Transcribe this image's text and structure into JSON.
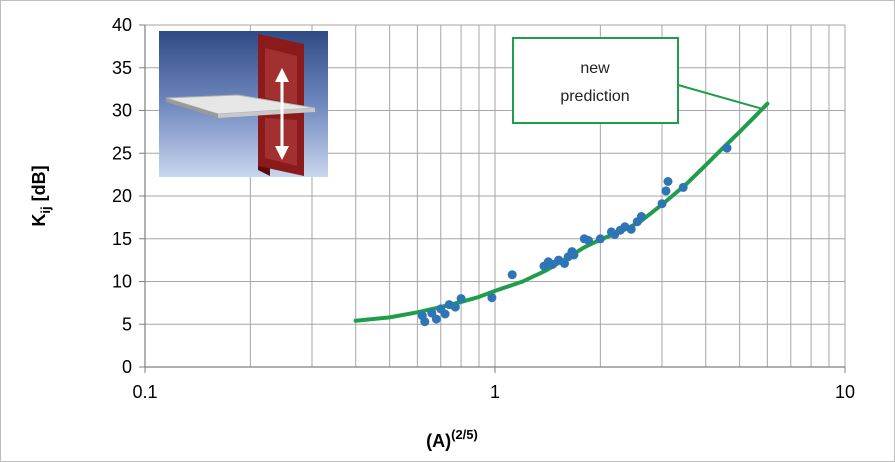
{
  "chart_data": {
    "type": "scatter",
    "xscale": "log",
    "xlim": [
      0.1,
      10
    ],
    "ylim": [
      0,
      40
    ],
    "x_ticks": [
      {
        "value": 0.1,
        "label": "0.1"
      },
      {
        "value": 1,
        "label": "1"
      },
      {
        "value": 10,
        "label": "10"
      }
    ],
    "y_ticks": [
      {
        "value": 0,
        "label": "0"
      },
      {
        "value": 5,
        "label": "5"
      },
      {
        "value": 10,
        "label": "10"
      },
      {
        "value": 15,
        "label": "15"
      },
      {
        "value": 20,
        "label": "20"
      },
      {
        "value": 25,
        "label": "25"
      },
      {
        "value": 30,
        "label": "30"
      },
      {
        "value": 35,
        "label": "35"
      },
      {
        "value": 40,
        "label": "40"
      }
    ],
    "xlabel": {
      "base": "(A)",
      "sup": "(2/5)"
    },
    "ylabel": {
      "base": "K",
      "sub": "ij",
      "rest": " [dB]"
    },
    "grid": true,
    "series": [
      {
        "kind": "points",
        "color": "#2e75b6",
        "x": [
          0.62,
          0.63,
          0.66,
          0.68,
          0.7,
          0.72,
          0.74,
          0.77,
          0.8,
          0.98,
          1.12,
          1.38,
          1.42,
          1.46,
          1.52,
          1.58,
          1.62,
          1.66,
          1.68,
          1.8,
          1.85,
          2.0,
          2.15,
          2.2,
          2.28,
          2.35,
          2.45,
          2.55,
          2.62,
          3.0,
          3.08,
          3.12,
          3.45,
          4.6
        ],
        "y": [
          6.0,
          5.3,
          6.3,
          5.6,
          6.8,
          6.2,
          7.3,
          7.0,
          8.0,
          8.1,
          10.8,
          11.8,
          12.3,
          12.0,
          12.5,
          12.1,
          12.9,
          13.5,
          13.1,
          15.0,
          14.8,
          15.0,
          15.8,
          15.5,
          16.0,
          16.4,
          16.1,
          17.0,
          17.6,
          19.1,
          20.6,
          21.7,
          21.0,
          25.6
        ]
      },
      {
        "kind": "line",
        "name": "new prediction",
        "color": "#1e9e4a",
        "x": [
          0.4,
          0.5,
          0.6,
          0.7,
          0.8,
          0.9,
          1.0,
          1.2,
          1.4,
          1.6,
          1.8,
          2.0,
          2.3,
          2.6,
          3.0,
          3.5,
          4.0,
          4.5,
          5.0,
          5.5,
          6.0
        ],
        "y": [
          5.4,
          5.8,
          6.4,
          7.0,
          7.6,
          8.2,
          8.9,
          10.0,
          11.3,
          12.7,
          14.0,
          14.9,
          15.9,
          17.0,
          19.0,
          21.3,
          23.6,
          25.7,
          27.5,
          29.2,
          30.8
        ]
      }
    ],
    "annotations": [
      {
        "text_lines": [
          "new",
          "prediction"
        ],
        "target": {
          "x": 5.8,
          "y": 30.2
        }
      }
    ],
    "inset": {
      "depicts": "plate-junction-diagram",
      "colors": {
        "wall": "#8b1a1a",
        "plate": "#e0e0e0",
        "arrow": "#ffffff",
        "bg_top": "#2f4a86",
        "bg_bottom": "#c9d6ee"
      }
    }
  }
}
